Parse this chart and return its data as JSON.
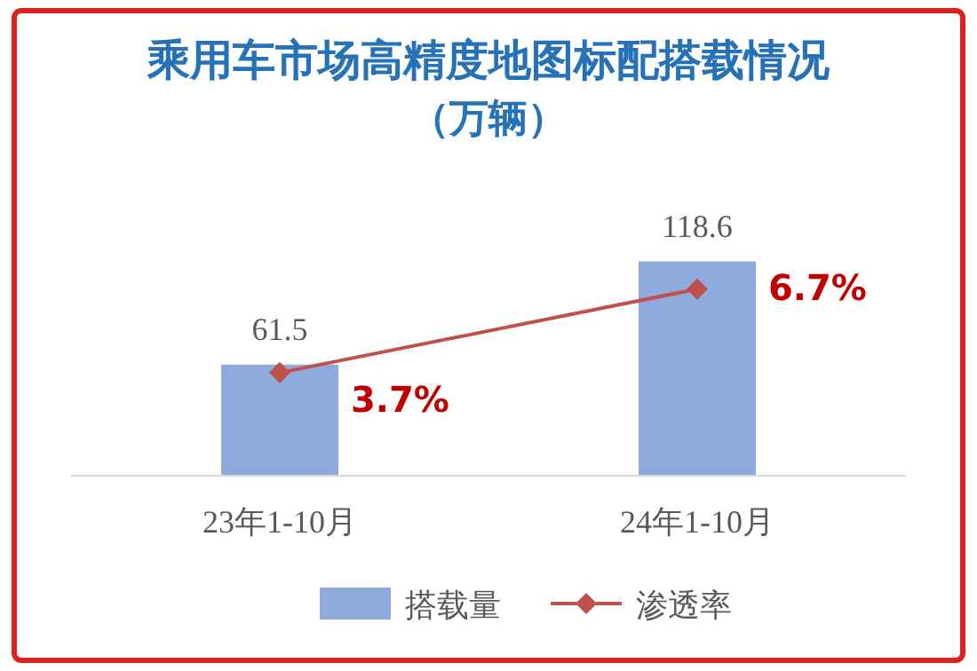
{
  "chart_data": {
    "type": "bar",
    "title": "乘用车市场高精度地图标配搭载情况",
    "subtitle": "（万辆）",
    "categories": [
      "23年1-10月",
      "24年1-10月"
    ],
    "series": [
      {
        "name": "搭载量",
        "color": "#8faadc",
        "values": [
          61.5,
          118.6
        ]
      },
      {
        "name": "渗透率",
        "type": "line",
        "axis": "y2",
        "color": "#c0504d",
        "marker": "diamond",
        "values": [
          3.7,
          6.7
        ],
        "value_labels": [
          "3.7%",
          "6.7%"
        ]
      }
    ],
    "data_labels": true,
    "legend": "bottom"
  }
}
